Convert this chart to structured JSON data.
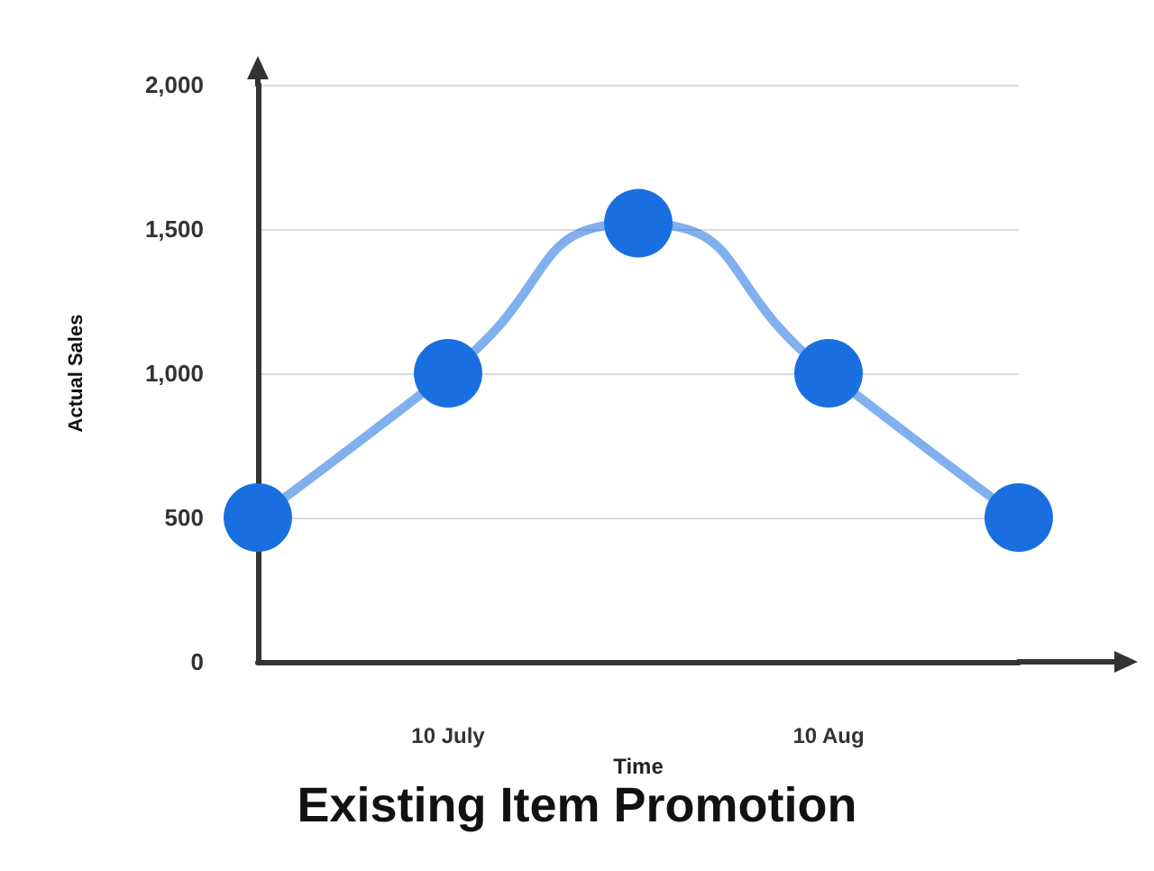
{
  "chart_data": {
    "type": "line",
    "title": "Existing Item Promotion",
    "xlabel": "Time",
    "ylabel": "Actual Sales",
    "categories": [
      null,
      "10 July",
      null,
      "10 Aug",
      null
    ],
    "series": [
      {
        "color": "#1a6fe0",
        "values": [
          500,
          1000,
          1520,
          1000,
          500
        ]
      }
    ],
    "ylim": [
      0,
      2000
    ],
    "yticks": [
      {
        "value": 0,
        "label": "0"
      },
      {
        "value": 500,
        "label": "500"
      },
      {
        "value": 1000,
        "label": "1,000"
      },
      {
        "value": 1500,
        "label": "1,500"
      },
      {
        "value": 2000,
        "label": "2,000"
      }
    ],
    "grid": "y",
    "marker": "circle",
    "line_style": "solid"
  }
}
